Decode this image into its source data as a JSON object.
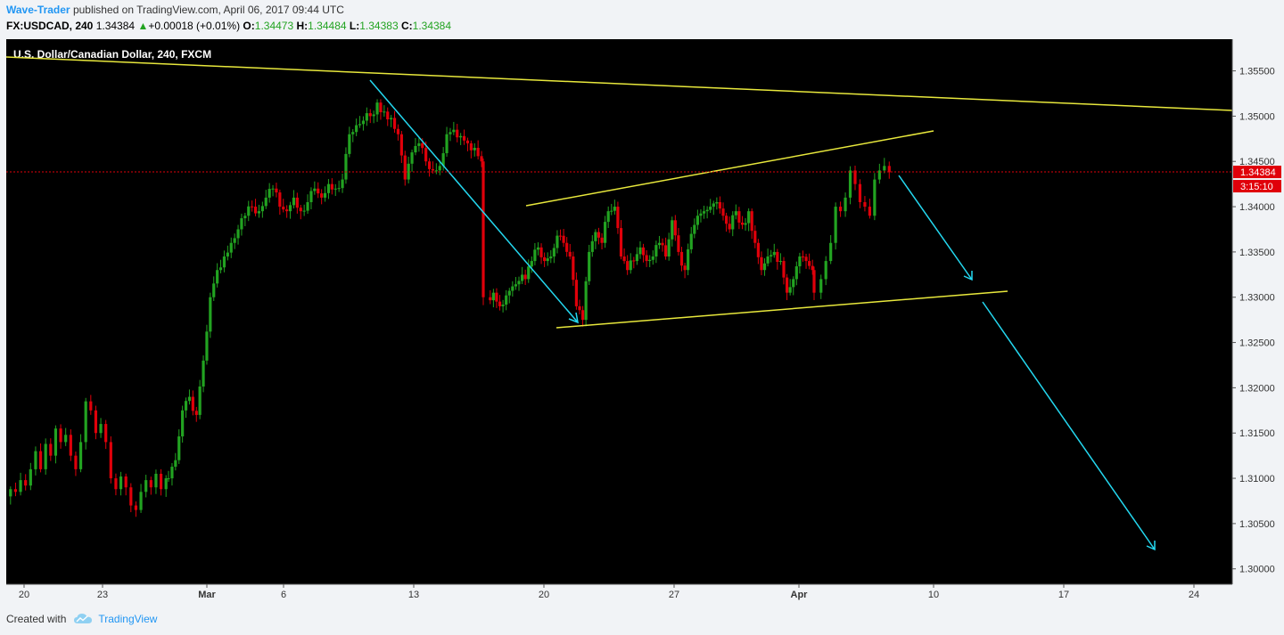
{
  "header": {
    "author": "Wave-Trader",
    "published_text": "published on TradingView.com, April 06, 2017 09:44 UTC",
    "symbol": "FX:USDCAD, 240",
    "last": "1.34384",
    "change_arrow": "▲",
    "change": "+0.00018 (+0.01%)",
    "open_label": "O:",
    "open": "1.34473",
    "high_label": "H:",
    "high": "1.34484",
    "low_label": "L:",
    "low": "1.34383",
    "close_label": "C:",
    "close": "1.34384"
  },
  "footer": {
    "created_with": "Created with",
    "brand": "TradingView",
    "brand_icon": "tradingview-cloud-icon"
  },
  "chart_data": {
    "type": "candlestick",
    "title": "U.S. Dollar/Canadian Dollar, 240, FXCM",
    "y_ticks": [
      "1.35500",
      "1.35000",
      "1.34500",
      "1.34000",
      "1.33500",
      "1.33000",
      "1.32500",
      "1.32000",
      "1.31500",
      "1.31000",
      "1.30500",
      "1.30000"
    ],
    "ylim": [
      1.2983,
      1.3585
    ],
    "x_ticks": [
      "20",
      "23",
      "Mar",
      "6",
      "13",
      "20",
      "27",
      "Apr",
      "10",
      "17",
      "24"
    ],
    "last_price_label": "1.34384",
    "last_price": 1.34384,
    "countdown_label": "3:15:10",
    "colors": {
      "background": "#000000",
      "up": "#22a321",
      "down": "#e0000a",
      "trendline": "#e8e83c",
      "arrow": "#24d8f0",
      "price_line": "#e0000a",
      "axis_text": "#333333",
      "title_text": "#ffffff"
    },
    "price_path": [
      [
        1.308,
        1.3088,
        1.3085,
        1.3098,
        1.3092,
        1.311,
        1.313,
        1.311,
        1.3138,
        1.3125,
        1.3155,
        1.314,
        1.3148,
        1.3125,
        1.311,
        1.314,
        1.3185,
        1.3175,
        1.315,
        1.316,
        1.314,
        1.31,
        1.3088,
        1.3102,
        1.309,
        1.307,
        1.3065,
        1.3085,
        1.3098,
        1.309,
        1.3105,
        1.3088,
        1.31
      ],
      [
        1.31,
        1.312,
        1.3175,
        1.319,
        1.317,
        1.323,
        1.33,
        1.333,
        1.3345,
        1.336,
        1.3375,
        1.339,
        1.34,
        1.3395,
        1.341,
        1.342,
        1.34,
        1.3395,
        1.341,
        1.3395,
        1.3405,
        1.342,
        1.341,
        1.3425,
        1.342,
        1.343,
        1.348,
        1.349,
        1.3495,
        1.35,
        1.3515,
        1.3505,
        1.3498,
        1.348,
        1.343,
        1.346,
        1.347,
        1.345,
        1.344,
        1.3445,
        1.348,
        1.3485,
        1.3478,
        1.347,
        1.3465,
        1.345
      ],
      [
        1.33,
        1.3305,
        1.329,
        1.3302,
        1.3312,
        1.3318,
        1.332,
        1.334,
        1.3355,
        1.334,
        1.3345,
        1.3368,
        1.336,
        1.3345,
        1.329,
        1.3275,
        1.335,
        1.3372,
        1.336,
        1.3395,
        1.34,
        1.3345,
        1.333,
        1.334,
        1.3355,
        1.334,
        1.3345,
        1.336,
        1.3345,
        1.3385,
        1.335,
        1.333,
        1.337,
        1.339,
        1.3395,
        1.34,
        1.3405,
        1.339,
        1.3375,
        1.3395,
        1.338,
        1.3395,
        1.336,
        1.333,
        1.3345,
        1.335,
        1.334,
        1.3305,
        1.332,
        1.3345,
        1.334,
        1.333
      ],
      [
        1.3305,
        1.332,
        1.334,
        1.336,
        1.34,
        1.3395,
        1.341,
        1.344,
        1.3425,
        1.3405,
        1.34,
        1.339,
        1.343,
        1.344,
        1.3445,
        1.3438
      ]
    ]
  }
}
